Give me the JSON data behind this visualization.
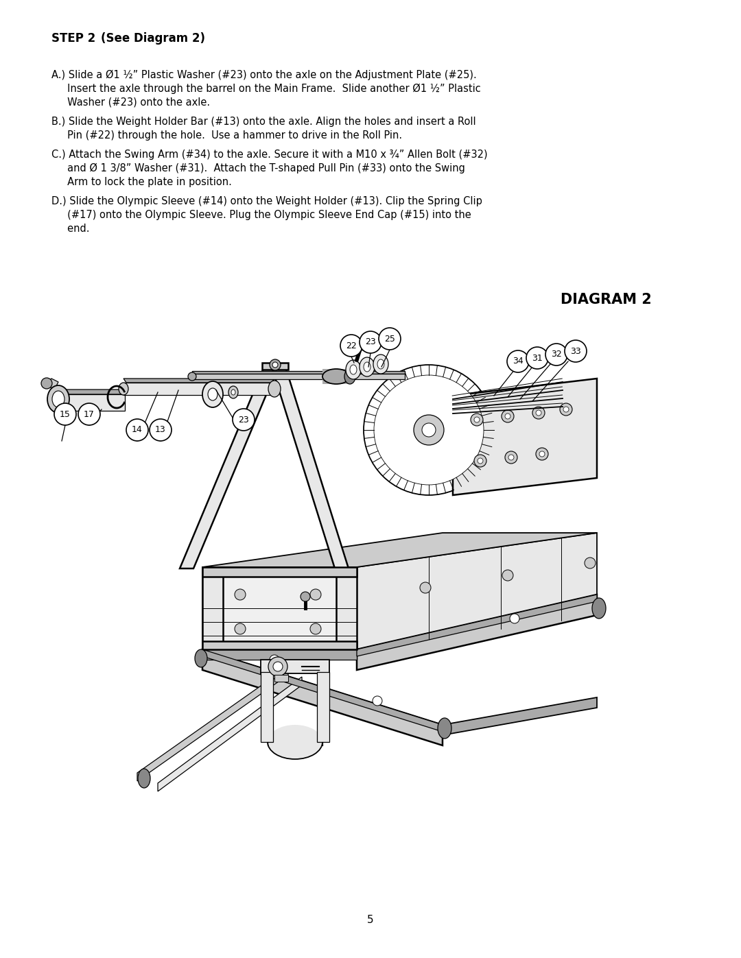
{
  "title_bold": "STEP 2",
  "title_normal": "   (See Diagram 2)",
  "diagram_title": "DIAGRAM 2",
  "page_number": "5",
  "background_color": "#ffffff",
  "text_color": "#000000",
  "step_A_line1": "A.) Slide a Ø1 ½” Plastic Washer (#23) onto the axle on the Adjustment Plate (#25).",
  "step_A_line2": "     Insert the axle through the barrel on the Main Frame.  Slide another Ø1 ½” Plastic",
  "step_A_line3": "     Washer (#23) onto the axle.",
  "step_B_line1": "B.) Slide the Weight Holder Bar (#13) onto the axle. Align the holes and insert a Roll",
  "step_B_line2": "     Pin (#22) through the hole.  Use a hammer to drive in the Roll Pin.",
  "step_C_line1": "C.) Attach the Swing Arm (#34) to the axle. Secure it with a M10 x ¾” Allen Bolt (#32)",
  "step_C_line2": "     and Ø 1 3/8” Washer (#31).  Attach the T-shaped Pull Pin (#33) onto the Swing",
  "step_C_line3": "     Arm to lock the plate in position.",
  "step_D_line1": "D.) Slide the Olympic Sleeve (#14) onto the Weight Holder (#13). Clip the Spring Clip",
  "step_D_line2": "     (#17) onto the Olympic Sleeve. Plug the Olympic Sleeve End Cap (#15) into the",
  "step_D_line3": "     end.",
  "font_size_title": 12,
  "font_size_body": 10.5,
  "font_size_diagram_title": 15,
  "font_size_page": 11,
  "font_size_label": 9
}
